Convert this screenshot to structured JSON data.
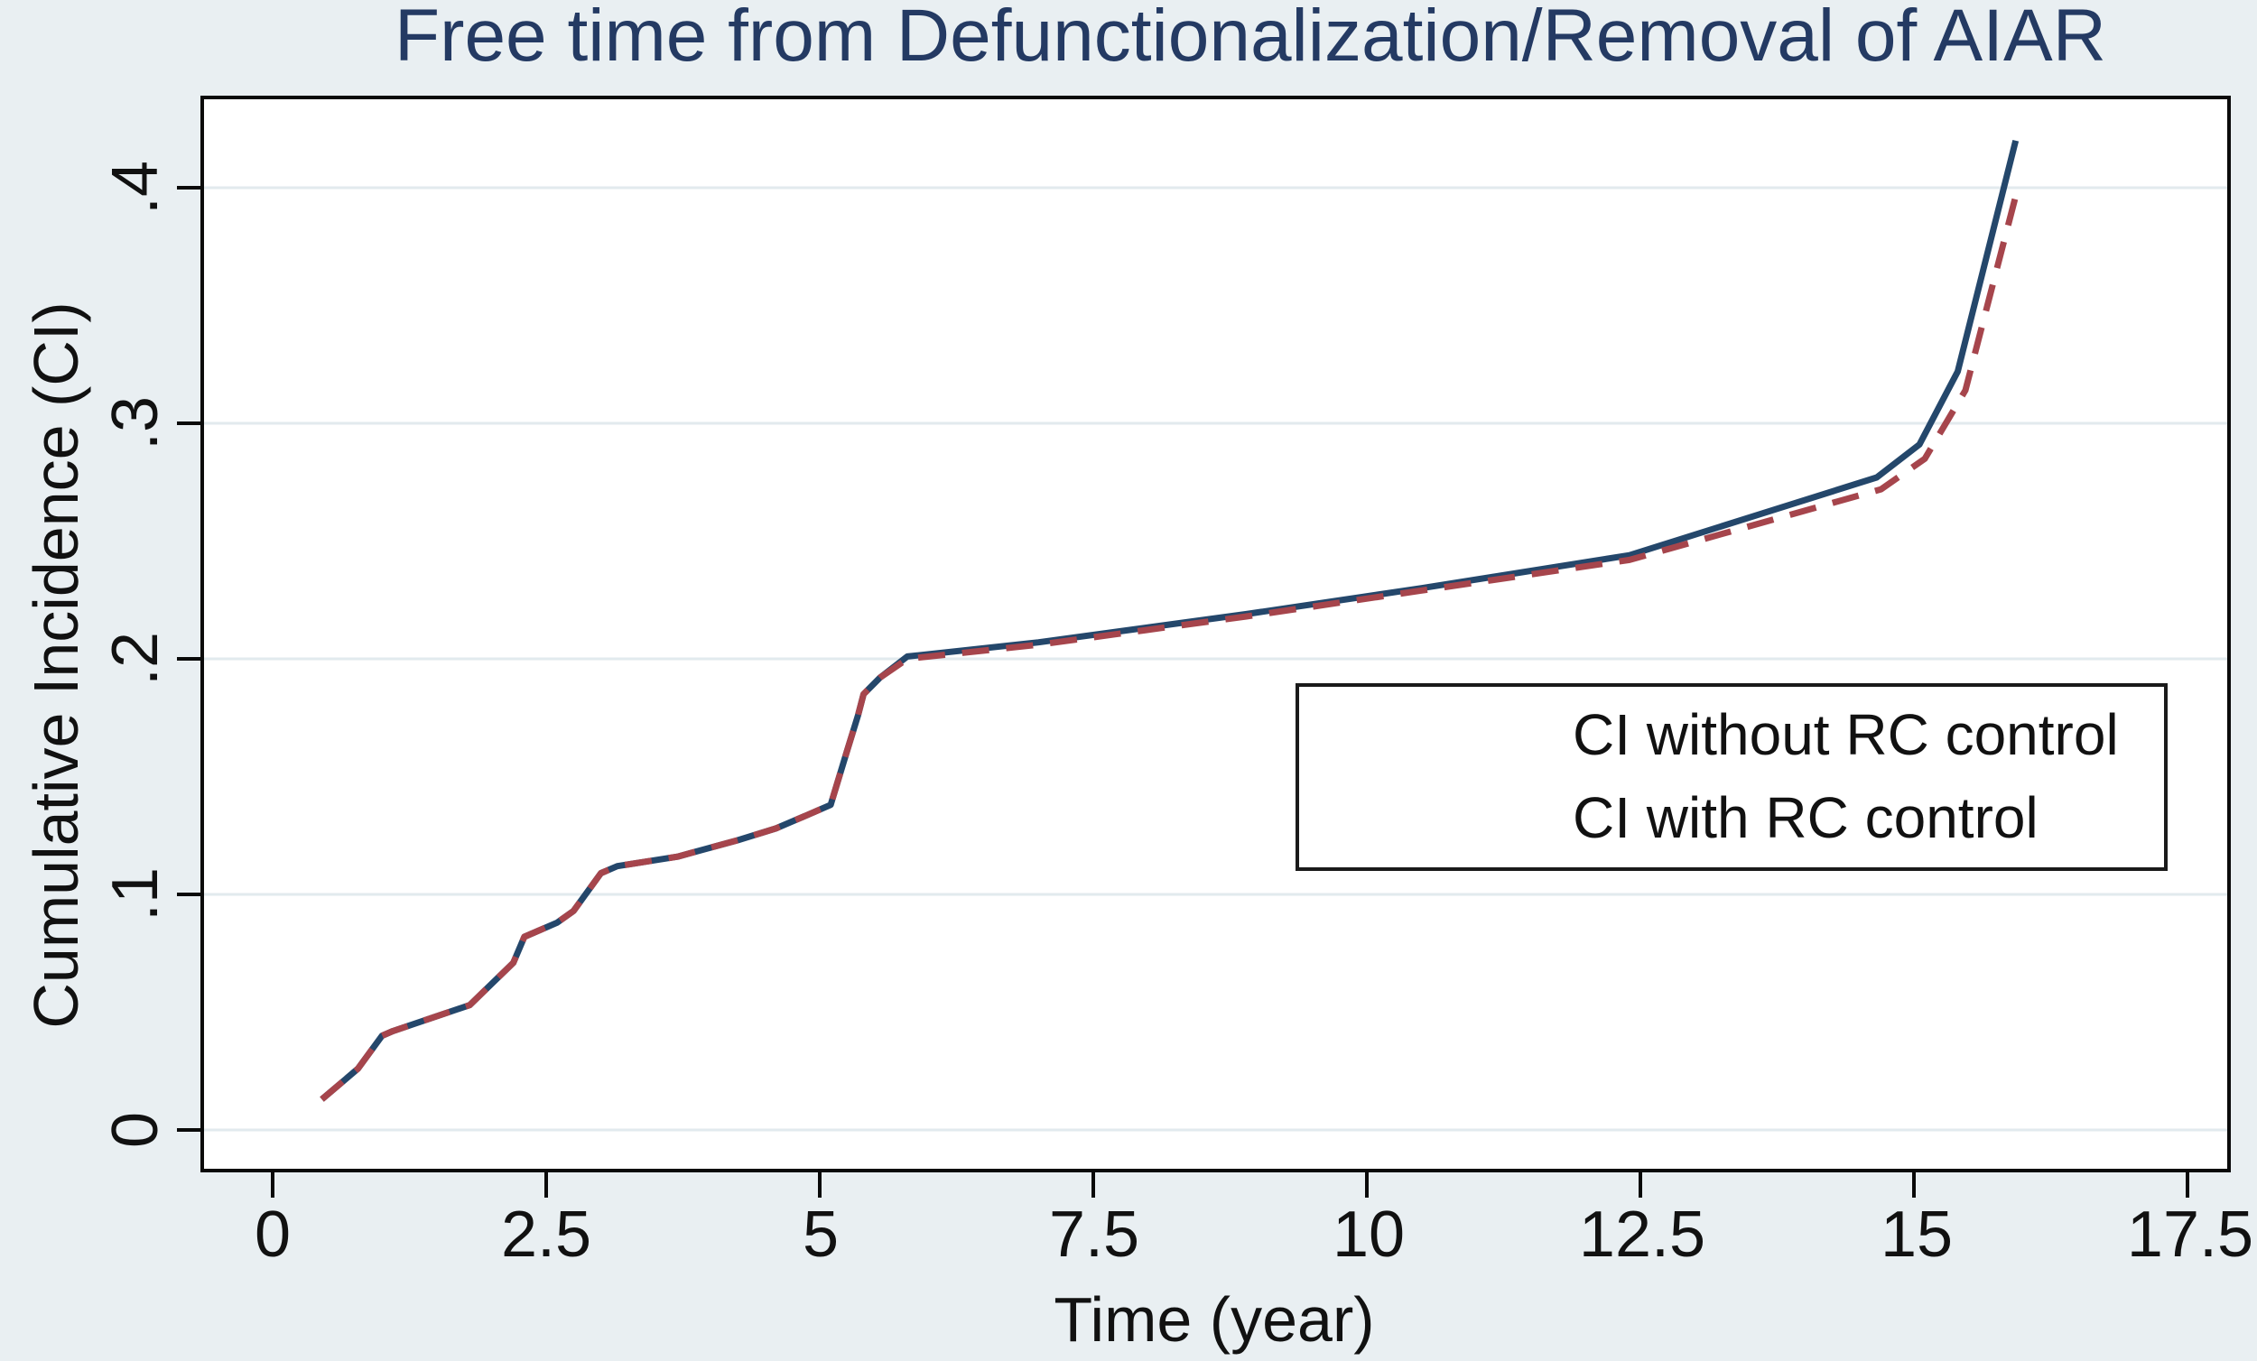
{
  "title": "Free time from Defunctionalization/Removal of AIAR",
  "axes": {
    "x": {
      "label": "Time (year)",
      "ticks": [
        {
          "value": 0,
          "label": "0"
        },
        {
          "value": 2.5,
          "label": "2.5"
        },
        {
          "value": 5,
          "label": "5"
        },
        {
          "value": 7.5,
          "label": "7.5"
        },
        {
          "value": 10,
          "label": "10"
        },
        {
          "value": 12.5,
          "label": "12.5"
        },
        {
          "value": 15,
          "label": "15"
        },
        {
          "value": 17.5,
          "label": "17.5"
        }
      ]
    },
    "y": {
      "label": "Cumulative Incidence (CI)",
      "ticks": [
        {
          "value": 0.0,
          "label": "0"
        },
        {
          "value": 0.1,
          "label": ".1"
        },
        {
          "value": 0.2,
          "label": ".2"
        },
        {
          "value": 0.3,
          "label": ".3"
        },
        {
          "value": 0.4,
          "label": ".4"
        }
      ]
    }
  },
  "legend": {
    "entries": [
      {
        "label": "CI without RC control",
        "style": "solid",
        "color": "#24476b"
      },
      {
        "label": "CI with RC control",
        "style": "dashed",
        "color": "#a6454c"
      }
    ]
  },
  "colors": {
    "canvas": "#e9eff2",
    "plot_background": "#ffffff",
    "gridline": "#e2eaee",
    "frame": "#0a0a0a",
    "title_text": "#243a63",
    "solid_line": "#24476b",
    "dashed_line": "#a6454c"
  },
  "chart_data": {
    "type": "line",
    "title": "Free time from Defunctionalization/Removal of AIAR",
    "xlabel": "Time (year)",
    "ylabel": "Cumulative Incidence (CI)",
    "xlim": [
      -0.65,
      17.9
    ],
    "ylim": [
      -0.017,
      0.438
    ],
    "grid": "horizontal",
    "legend_position": "middle-right",
    "series": [
      {
        "name": "CI without RC control",
        "color": "#24476b",
        "dash": "solid",
        "points": [
          [
            0.45,
            0.013
          ],
          [
            0.78,
            0.026
          ],
          [
            1.0,
            0.04
          ],
          [
            1.1,
            0.042
          ],
          [
            1.8,
            0.053
          ],
          [
            2.2,
            0.071
          ],
          [
            2.3,
            0.082
          ],
          [
            2.6,
            0.088
          ],
          [
            2.75,
            0.093
          ],
          [
            3.0,
            0.109
          ],
          [
            3.15,
            0.112
          ],
          [
            3.7,
            0.116
          ],
          [
            4.25,
            0.123
          ],
          [
            4.6,
            0.128
          ],
          [
            4.9,
            0.134
          ],
          [
            5.1,
            0.138
          ],
          [
            5.25,
            0.161
          ],
          [
            5.35,
            0.176
          ],
          [
            5.4,
            0.185
          ],
          [
            5.55,
            0.192
          ],
          [
            5.8,
            0.201
          ],
          [
            7.0,
            0.207
          ],
          [
            8.9,
            0.219
          ],
          [
            10.5,
            0.23
          ],
          [
            12.4,
            0.244
          ],
          [
            14.66,
            0.277
          ],
          [
            15.05,
            0.291
          ],
          [
            15.4,
            0.322
          ],
          [
            15.93,
            0.42
          ]
        ]
      },
      {
        "name": "CI with RC control",
        "color": "#a6454c",
        "dash": "dashed",
        "points": [
          [
            0.45,
            0.013
          ],
          [
            0.78,
            0.026
          ],
          [
            1.0,
            0.04
          ],
          [
            1.1,
            0.042
          ],
          [
            1.8,
            0.053
          ],
          [
            2.2,
            0.071
          ],
          [
            2.3,
            0.082
          ],
          [
            2.6,
            0.088
          ],
          [
            2.75,
            0.093
          ],
          [
            3.0,
            0.109
          ],
          [
            3.15,
            0.112
          ],
          [
            3.7,
            0.116
          ],
          [
            4.25,
            0.123
          ],
          [
            4.6,
            0.128
          ],
          [
            4.9,
            0.134
          ],
          [
            5.1,
            0.138
          ],
          [
            5.25,
            0.161
          ],
          [
            5.35,
            0.176
          ],
          [
            5.4,
            0.185
          ],
          [
            5.55,
            0.192
          ],
          [
            5.8,
            0.2
          ],
          [
            7.0,
            0.206
          ],
          [
            8.9,
            0.218
          ],
          [
            10.5,
            0.229
          ],
          [
            12.4,
            0.242
          ],
          [
            14.7,
            0.272
          ],
          [
            15.1,
            0.285
          ],
          [
            15.47,
            0.314
          ],
          [
            15.95,
            0.4
          ]
        ]
      }
    ]
  }
}
